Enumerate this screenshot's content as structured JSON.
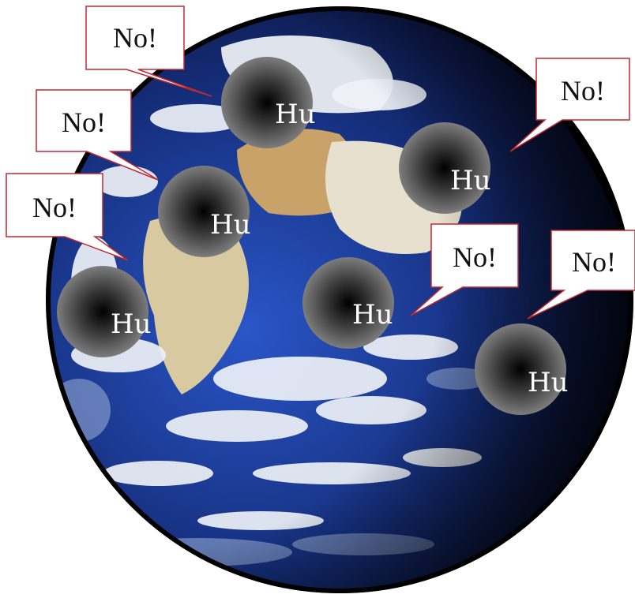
{
  "colors": {
    "ocean_deep": "#0a1240",
    "ocean_blue": "#1d3fa6",
    "cloud": "#eef1f7",
    "land": "#c9a26a",
    "space": "#000000",
    "bubble_border": "#c0282f",
    "bubble_fill": "#ffffff"
  },
  "figures": [
    {
      "label": "Hu"
    },
    {
      "label": "Hu"
    },
    {
      "label": "Hu"
    },
    {
      "label": "Hu"
    },
    {
      "label": "Hu"
    },
    {
      "label": "Hu"
    }
  ],
  "bubbles": [
    {
      "text": "No!"
    },
    {
      "text": "No!"
    },
    {
      "text": "No!"
    },
    {
      "text": "No!"
    },
    {
      "text": "No!"
    },
    {
      "text": "No!"
    }
  ]
}
